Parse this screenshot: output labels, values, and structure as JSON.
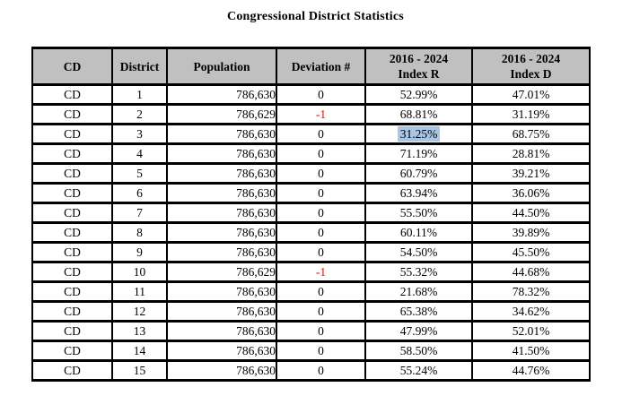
{
  "title": "Congressional District Statistics",
  "colors": {
    "header_background": "#c0c0c0",
    "negative_value_text": "#ff0000",
    "selection_highlight": "#a9c6e4",
    "table_border": "#000000"
  },
  "table": {
    "headers": {
      "cd": "CD",
      "district": "District",
      "population": "Population",
      "deviation": "Deviation #",
      "index_r_line1": "2016 - 2024",
      "index_r_line2": "Index R",
      "index_d_line1": "2016 - 2024",
      "index_d_line2": "Index D"
    },
    "rows": [
      {
        "cd": "CD",
        "district": "1",
        "population": "786,630",
        "deviation": "0",
        "index_r": "52.99%",
        "index_d": "47.01%"
      },
      {
        "cd": "CD",
        "district": "2",
        "population": "786,629",
        "deviation": "-1",
        "index_r": "68.81%",
        "index_d": "31.19%"
      },
      {
        "cd": "CD",
        "district": "3",
        "population": "786,630",
        "deviation": "0",
        "index_r": "31.25%",
        "index_d": "68.75%"
      },
      {
        "cd": "CD",
        "district": "4",
        "population": "786,630",
        "deviation": "0",
        "index_r": "71.19%",
        "index_d": "28.81%"
      },
      {
        "cd": "CD",
        "district": "5",
        "population": "786,630",
        "deviation": "0",
        "index_r": "60.79%",
        "index_d": "39.21%"
      },
      {
        "cd": "CD",
        "district": "6",
        "population": "786,630",
        "deviation": "0",
        "index_r": "63.94%",
        "index_d": "36.06%"
      },
      {
        "cd": "CD",
        "district": "7",
        "population": "786,630",
        "deviation": "0",
        "index_r": "55.50%",
        "index_d": "44.50%"
      },
      {
        "cd": "CD",
        "district": "8",
        "population": "786,630",
        "deviation": "0",
        "index_r": "60.11%",
        "index_d": "39.89%"
      },
      {
        "cd": "CD",
        "district": "9",
        "population": "786,630",
        "deviation": "0",
        "index_r": "54.50%",
        "index_d": "45.50%"
      },
      {
        "cd": "CD",
        "district": "10",
        "population": "786,629",
        "deviation": "-1",
        "index_r": "55.32%",
        "index_d": "44.68%"
      },
      {
        "cd": "CD",
        "district": "11",
        "population": "786,630",
        "deviation": "0",
        "index_r": "21.68%",
        "index_d": "78.32%"
      },
      {
        "cd": "CD",
        "district": "12",
        "population": "786,630",
        "deviation": "0",
        "index_r": "65.38%",
        "index_d": "34.62%"
      },
      {
        "cd": "CD",
        "district": "13",
        "population": "786,630",
        "deviation": "0",
        "index_r": "47.99%",
        "index_d": "52.01%"
      },
      {
        "cd": "CD",
        "district": "14",
        "population": "786,630",
        "deviation": "0",
        "index_r": "58.50%",
        "index_d": "41.50%"
      },
      {
        "cd": "CD",
        "district": "15",
        "population": "786,630",
        "deviation": "0",
        "index_r": "55.24%",
        "index_d": "44.76%"
      }
    ]
  }
}
